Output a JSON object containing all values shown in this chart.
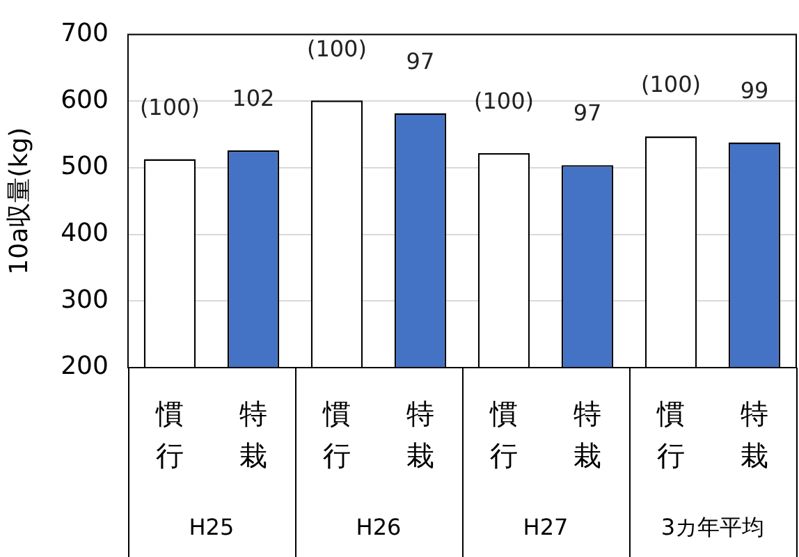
{
  "chart_data": {
    "type": "bar",
    "ylabel": "10a収量(kg)",
    "categories": [
      "慣行",
      "特栽",
      "慣行",
      "特栽",
      "慣行",
      "特栽",
      "慣行",
      "特栽"
    ],
    "values": [
      513,
      526,
      601,
      582,
      522,
      504,
      547,
      538
    ],
    "colors": [
      "#ffffff",
      "#4472c4",
      "#ffffff",
      "#4472c4",
      "#ffffff",
      "#4472c4",
      "#ffffff",
      "#4472c4"
    ],
    "annotations": [
      "H25",
      "H26",
      "H27",
      "3カ年平均",
      "(100)",
      "102",
      "(100)",
      "97",
      "(100)",
      "97",
      "(100)",
      "99"
    ],
    "ylim": [
      200,
      700
    ],
    "yticks": [
      200,
      300,
      400,
      500,
      600,
      700
    ],
    "grid": "y",
    "legend": false
  }
}
